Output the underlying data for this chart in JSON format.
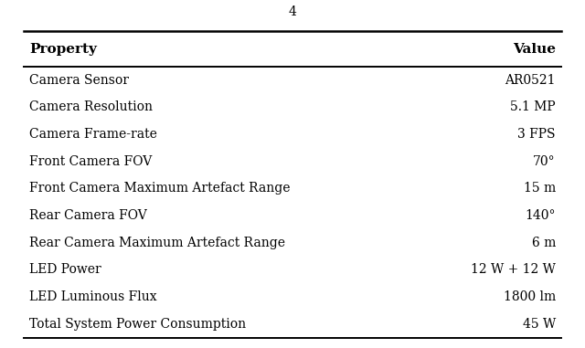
{
  "title": "4",
  "header": [
    "Property",
    "Value"
  ],
  "rows": [
    [
      "Camera Sensor",
      "AR0521"
    ],
    [
      "Camera Resolution",
      "5.1 MP"
    ],
    [
      "Camera Frame-rate",
      "3 FPS"
    ],
    [
      "Front Camera FOV",
      "70°"
    ],
    [
      "Front Camera Maximum Artefact Range",
      "15 m"
    ],
    [
      "Rear Camera FOV",
      "140°"
    ],
    [
      "Rear Camera Maximum Artefact Range",
      "6 m"
    ],
    [
      "LED Power",
      "12 W + 12 W"
    ],
    [
      "LED Luminous Flux",
      "1800 lm"
    ],
    [
      "Total System Power Consumption",
      "45 W"
    ]
  ],
  "bg_color": "#ffffff",
  "text_color": "#000000",
  "header_fontsize": 11,
  "row_fontsize": 10.0,
  "title_fontsize": 10
}
